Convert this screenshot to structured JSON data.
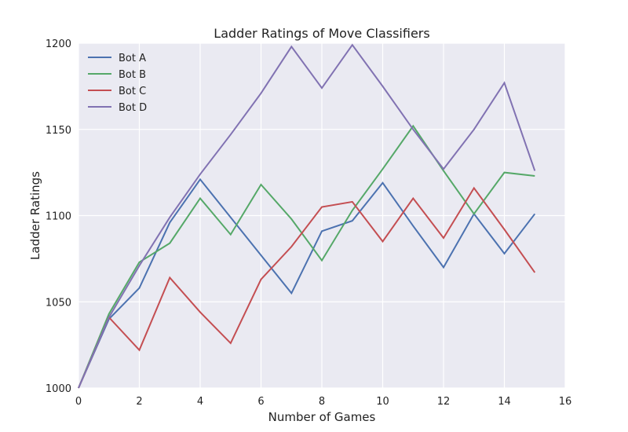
{
  "chart_data": {
    "type": "line",
    "title": "Ladder Ratings of Move Classifiers",
    "xlabel": "Number of Games",
    "ylabel": "Ladder Ratings",
    "xlim": [
      0,
      16
    ],
    "ylim": [
      1000,
      1200
    ],
    "xticks": [
      0,
      2,
      4,
      6,
      8,
      10,
      12,
      14,
      16
    ],
    "yticks": [
      1000,
      1050,
      1100,
      1150,
      1200
    ],
    "grid": true,
    "legend_position": "top-left",
    "x": [
      0,
      1,
      2,
      3,
      4,
      5,
      6,
      7,
      8,
      9,
      10,
      11,
      12,
      13,
      14,
      15
    ],
    "series": [
      {
        "name": "Bot A",
        "color": "#4c72b0",
        "values": [
          1000,
          1040,
          1058,
          1096,
          1121,
          1099,
          1077,
          1055,
          1091,
          1097,
          1119,
          1094,
          1070,
          1101,
          1078,
          1101
        ]
      },
      {
        "name": "Bot B",
        "color": "#55a868",
        "values": [
          1000,
          1043,
          1073,
          1084,
          1110,
          1089,
          1118,
          1098,
          1074,
          1103,
          1127,
          1152,
          1126,
          1101,
          1125,
          1123
        ]
      },
      {
        "name": "Bot C",
        "color": "#c44e52",
        "values": [
          1000,
          1041,
          1022,
          1064,
          1044,
          1026,
          1063,
          1082,
          1105,
          1108,
          1085,
          1110,
          1087,
          1116,
          1092,
          1067
        ]
      },
      {
        "name": "Bot D",
        "color": "#8172b2",
        "values": [
          1000,
          1041,
          1071,
          1099,
          1124,
          1147,
          1171,
          1198,
          1174,
          1199,
          1175,
          1150,
          1127,
          1150,
          1177,
          1126
        ]
      }
    ]
  }
}
